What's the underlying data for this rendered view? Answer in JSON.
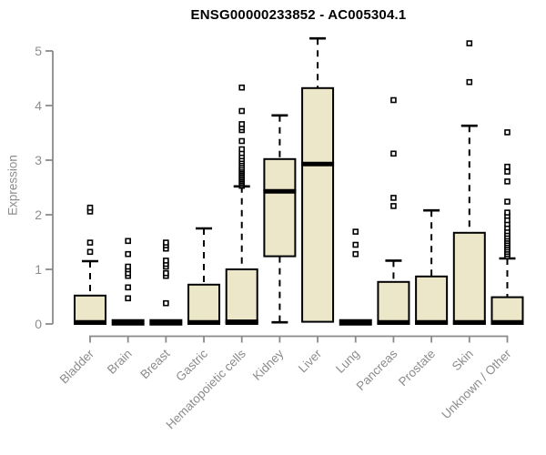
{
  "chart_data": {
    "type": "boxplot",
    "title": "ENSG00000233852 - AC005304.1",
    "ylabel": "Expression",
    "xlabel": "",
    "ylim": [
      0,
      5
    ],
    "yticks": [
      0,
      1,
      2,
      3,
      4,
      5
    ],
    "grid": false,
    "legend": "none",
    "categories": [
      "Bladder",
      "Brain",
      "Breast",
      "Gastric",
      "Hematopoietic cells",
      "Kidney",
      "Liver",
      "Lung",
      "Pancreas",
      "Prostate",
      "Skin",
      "Unknown / Other"
    ],
    "boxes": [
      {
        "category": "Bladder",
        "q1": 0,
        "median": 0.03,
        "q3": 0.52,
        "whisker_low": 0,
        "whisker_high": 1.15,
        "outliers": [
          1.32,
          1.49,
          2.06,
          2.13
        ]
      },
      {
        "category": "Brain",
        "q1": 0,
        "median": 0,
        "q3": 0,
        "whisker_low": 0,
        "whisker_high": 0,
        "outliers": [
          0.47,
          0.67,
          0.88,
          0.93,
          1.0,
          1.05,
          1.28,
          1.52
        ]
      },
      {
        "category": "Breast",
        "q1": 0,
        "median": 0,
        "q3": 0,
        "whisker_low": 0,
        "whisker_high": 0,
        "outliers": [
          0.38,
          0.88,
          0.93,
          1.05,
          1.1,
          1.16,
          1.38,
          1.44,
          1.49
        ]
      },
      {
        "category": "Gastric",
        "q1": 0,
        "median": 0.03,
        "q3": 0.72,
        "whisker_low": 0,
        "whisker_high": 1.75,
        "outliers": []
      },
      {
        "category": "Hematopoietic cells",
        "q1": 0,
        "median": 0.04,
        "q3": 1.0,
        "whisker_low": 0,
        "whisker_high": 2.52,
        "outliers": [
          2.53,
          2.56,
          2.59,
          2.62,
          2.65,
          2.68,
          2.71,
          2.74,
          2.77,
          2.8,
          2.83,
          2.86,
          2.9,
          2.94,
          2.98,
          3.02,
          3.07,
          3.13,
          3.2,
          3.35,
          3.55,
          3.6,
          3.66,
          3.9,
          4.33
        ]
      },
      {
        "category": "Kidney",
        "q1": 1.24,
        "median": 2.43,
        "q3": 3.02,
        "whisker_low": 0.03,
        "whisker_high": 3.82,
        "outliers": []
      },
      {
        "category": "Liver",
        "q1": 0.04,
        "median": 2.93,
        "q3": 4.32,
        "whisker_low": 0.04,
        "whisker_high": 5.23,
        "outliers": []
      },
      {
        "category": "Lung",
        "q1": 0,
        "median": 0,
        "q3": 0,
        "whisker_low": 0,
        "whisker_high": 0,
        "outliers": [
          1.28,
          1.45,
          1.69
        ]
      },
      {
        "category": "Pancreas",
        "q1": 0,
        "median": 0.03,
        "q3": 0.77,
        "whisker_low": 0,
        "whisker_high": 1.16,
        "outliers": [
          2.16,
          2.31,
          3.12,
          4.1
        ]
      },
      {
        "category": "Prostate",
        "q1": 0,
        "median": 0.03,
        "q3": 0.87,
        "whisker_low": 0,
        "whisker_high": 2.08,
        "outliers": []
      },
      {
        "category": "Skin",
        "q1": 0,
        "median": 0.03,
        "q3": 1.67,
        "whisker_low": 0,
        "whisker_high": 3.63,
        "outliers": [
          4.43,
          5.14
        ]
      },
      {
        "category": "Unknown / Other",
        "q1": 0,
        "median": 0.03,
        "q3": 0.49,
        "whisker_low": 0,
        "whisker_high": 1.2,
        "outliers": [
          1.24,
          1.28,
          1.32,
          1.36,
          1.4,
          1.44,
          1.48,
          1.52,
          1.56,
          1.6,
          1.65,
          1.7,
          1.76,
          1.83,
          1.9,
          1.98,
          2.04,
          2.24,
          2.61,
          2.79,
          2.88,
          3.51
        ]
      }
    ],
    "colors": {
      "box_fill": "#ece7c8",
      "box_stroke": "#000000",
      "median": "#000000",
      "whisker": "#000000",
      "outlier_stroke": "#000000",
      "axis": "#8a8a8a",
      "tick_label": "#8c8c8c",
      "title": "#000000",
      "background": "#ffffff"
    }
  }
}
